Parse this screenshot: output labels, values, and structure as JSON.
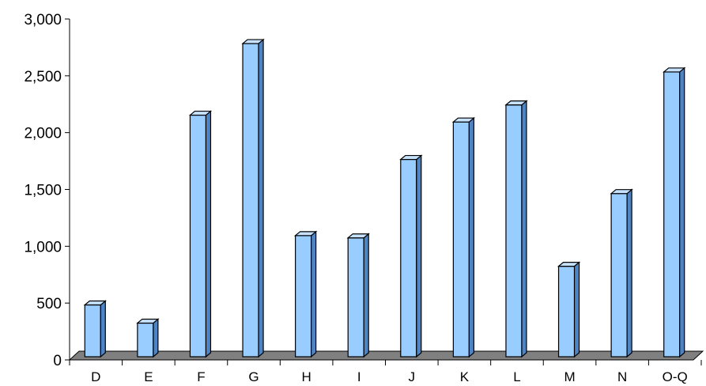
{
  "chart_data": {
    "type": "bar",
    "title": "",
    "xlabel": "",
    "ylabel": "",
    "categories": [
      "D",
      "E",
      "F",
      "G",
      "H",
      "I",
      "J",
      "K",
      "L",
      "M",
      "N",
      "O-Q"
    ],
    "values": [
      470,
      310,
      2140,
      2770,
      1080,
      1060,
      1750,
      2080,
      2230,
      810,
      1450,
      2520
    ],
    "ylim": [
      0,
      3000
    ],
    "yticks": [
      0,
      500,
      1000,
      1500,
      2000,
      2500,
      3000
    ],
    "ytick_labels": [
      "0",
      "500",
      "1,000",
      "1,500",
      "2,000",
      "2,500",
      "3,000"
    ],
    "grid": false,
    "legend": "none",
    "style": "3d-column",
    "colors": {
      "bar_front": "#99ccff",
      "bar_side": "#4f84c4",
      "bar_top": "#c6e2ff",
      "floor": "#808080",
      "axis": "#000000"
    }
  }
}
